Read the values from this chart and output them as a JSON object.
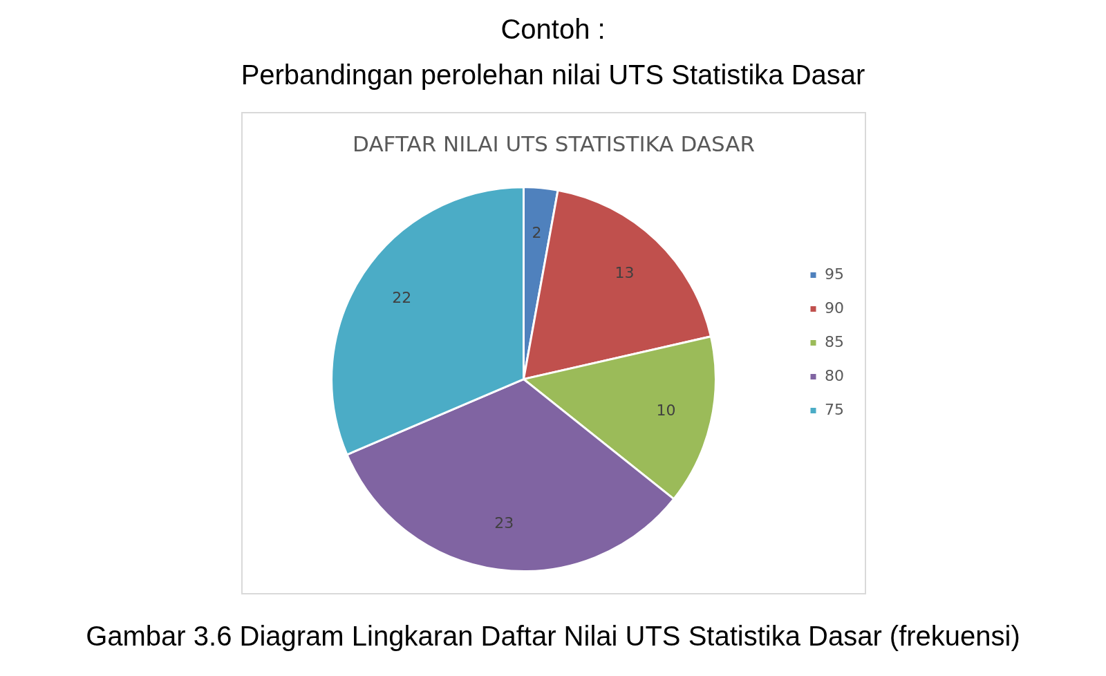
{
  "chart_data": {
    "type": "pie",
    "title": "DAFTAR NILAI UTS STATISTIKA DASAR",
    "categories": [
      "95",
      "90",
      "85",
      "80",
      "75"
    ],
    "values": [
      2,
      13,
      10,
      23,
      22
    ],
    "colors": [
      "#4f81bd",
      "#c0504d",
      "#9bbb59",
      "#8064a2",
      "#4bacc6"
    ],
    "data_labels": true,
    "legend": "right",
    "annotations": [
      "Contoh :",
      "Perbandingan perolehan nilai UTS Statistika Dasar",
      "Gambar 3.6 Diagram Lingkaran Daftar Nilai UTS Statistika Dasar (frekuensi)"
    ]
  }
}
